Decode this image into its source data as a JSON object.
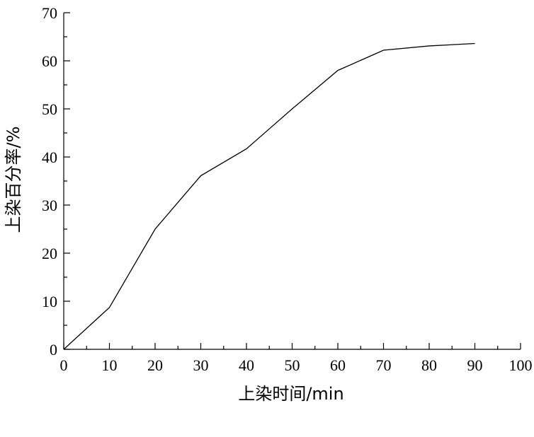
{
  "chart_data": {
    "type": "line",
    "xlabel": "上染时间/min",
    "ylabel": "上染百分率/%",
    "xlim": [
      0,
      100
    ],
    "ylim": [
      0,
      70
    ],
    "xticks": [
      0,
      10,
      20,
      30,
      40,
      50,
      60,
      70,
      80,
      90,
      100
    ],
    "yticks": [
      0,
      10,
      20,
      30,
      40,
      50,
      60,
      70
    ],
    "grid": false,
    "series": [
      {
        "x": [
          0,
          10,
          20,
          30,
          40,
          50,
          60,
          70,
          80,
          90
        ],
        "values": [
          0,
          8.7,
          25.0,
          36.1,
          41.7,
          50.0,
          58.0,
          62.2,
          63.1,
          63.6
        ],
        "color": "#000000"
      }
    ]
  }
}
